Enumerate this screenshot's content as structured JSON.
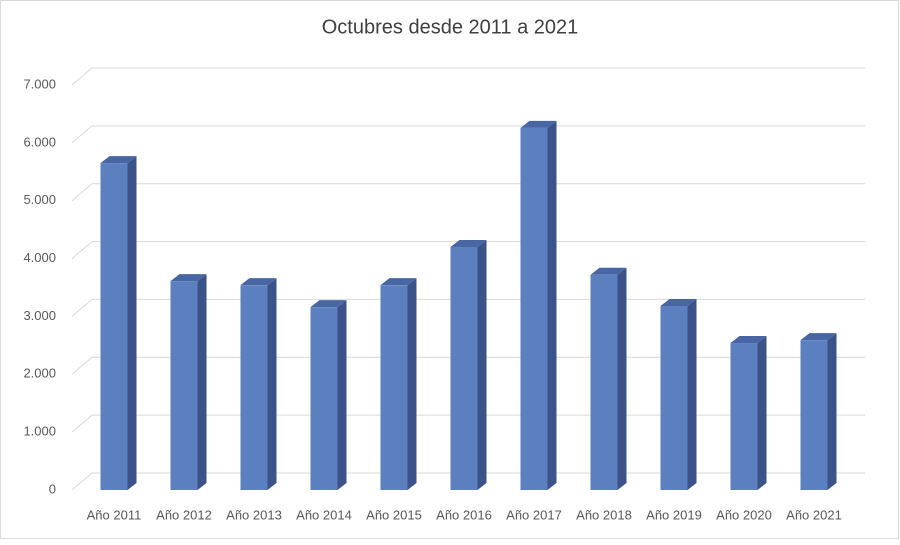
{
  "chart_data": {
    "type": "bar3d",
    "title": "Octubres desde 2011 a 2021",
    "categories": [
      "Año 2011",
      "Año 2012",
      "Año 2013",
      "Año 2014",
      "Año 2015",
      "Año 2016",
      "Año 2017",
      "Año 2018",
      "Año 2019",
      "Año 2020",
      "Año 2021"
    ],
    "values": [
      5650,
      3610,
      3540,
      3160,
      3540,
      4200,
      6260,
      3720,
      3180,
      2540,
      2590
    ],
    "color": "#5b7fbf",
    "ylim": [
      0,
      7000
    ],
    "yticks": [
      0,
      {
        "value": 1000,
        "label": "1.000"
      },
      {
        "value": 2000,
        "label": "2.000"
      },
      {
        "value": 3000,
        "label": "3.000"
      },
      {
        "value": 4000,
        "label": "4.000"
      },
      {
        "value": 5000,
        "label": "5.000"
      },
      {
        "value": 6000,
        "label": "6.000"
      },
      {
        "value": 7000,
        "label": "7.000"
      }
    ],
    "grid": true
  }
}
